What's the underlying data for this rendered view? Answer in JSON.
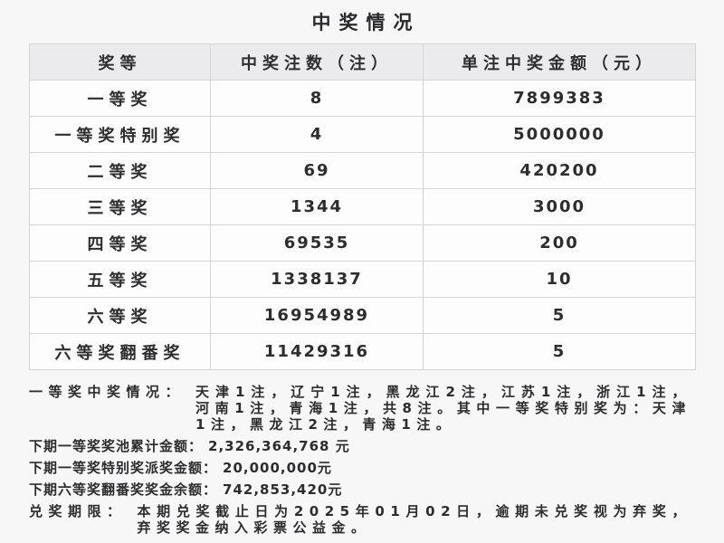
{
  "title": "中奖情况",
  "table": {
    "columns": [
      "奖等",
      "中奖注数（注）",
      "单注中奖金额（元）"
    ],
    "rows": [
      {
        "tier": "一等奖",
        "count": "8",
        "amount": "7899383"
      },
      {
        "tier": "一等奖特别奖",
        "count": "4",
        "amount": "5000000"
      },
      {
        "tier": "二等奖",
        "count": "69",
        "amount": "420200"
      },
      {
        "tier": "三等奖",
        "count": "1344",
        "amount": "3000"
      },
      {
        "tier": "四等奖",
        "count": "69535",
        "amount": "200"
      },
      {
        "tier": "五等奖",
        "count": "1338137",
        "amount": "10"
      },
      {
        "tier": "六等奖",
        "count": "16954989",
        "amount": "5"
      },
      {
        "tier": "六等奖翻番奖",
        "count": "11429316",
        "amount": "5"
      }
    ]
  },
  "notes": [
    {
      "label": "一等奖中奖情况：",
      "text": "天津1注，辽宁1注，黑龙江2注，江苏1注，浙江1注，河南1注，青海1注，共8注。其中一等奖特别奖为：天津1注，黑龙江2注，青海1注。"
    },
    {
      "label": "下期一等奖奖池累计金额：",
      "text": "2,326,364,768 元"
    },
    {
      "label": "下期一等奖特别奖派奖金额：",
      "text": "20,000,000元"
    },
    {
      "label": "下期六等奖翻番奖奖金余额：",
      "text": "742,853,420元"
    },
    {
      "label": "兑奖期限：",
      "text": "本期兑奖截止日为2025年01月02日，逾期未兑奖视为弃奖，弃奖奖金纳入彩票公益金。"
    }
  ],
  "colors": {
    "page_bg": "#f7f7f8",
    "header_bg": "#ebebed",
    "cell_bg": "#fdfdfe",
    "border": "#d4d4d6",
    "text": "#2d2d2f"
  }
}
